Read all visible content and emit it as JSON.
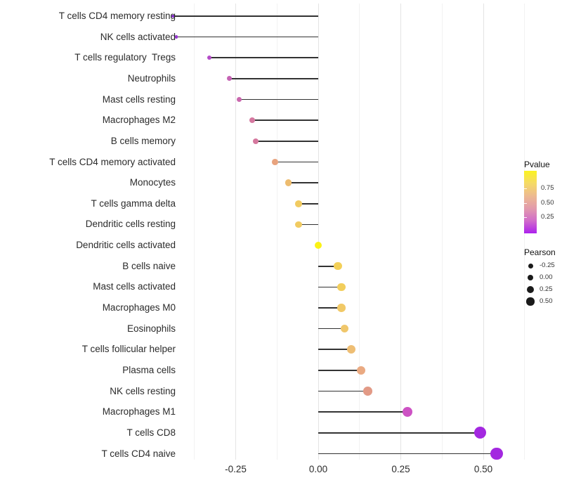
{
  "chart_data": {
    "type": "scatter",
    "subtype": "lollipop-horizontal",
    "title": "",
    "xlabel": "",
    "ylabel": "",
    "grid": true,
    "categories": [
      "T cells CD4 memory resting",
      "NK cells activated",
      "T cells regulatory  Tregs",
      "Neutrophils",
      "Mast cells resting",
      "Macrophages M2",
      "B cells memory",
      "T cells CD4 memory activated",
      "Monocytes",
      "T cells gamma delta",
      "Dendritic cells resting",
      "Dendritic cells activated",
      "B cells naive",
      "Mast cells activated",
      "Macrophages M0",
      "Eosinophils",
      "T cells follicular helper",
      "Plasma cells",
      "NK cells resting",
      "Macrophages M1",
      "T cells CD8",
      "T cells CD4 naive"
    ],
    "series": [
      {
        "name": "Pearson",
        "values": [
          -0.44,
          -0.43,
          -0.33,
          -0.27,
          -0.24,
          -0.2,
          -0.19,
          -0.13,
          -0.09,
          -0.06,
          -0.06,
          0.0,
          0.06,
          0.07,
          0.07,
          0.08,
          0.1,
          0.13,
          0.15,
          0.27,
          0.49,
          0.54
        ]
      }
    ],
    "point_colors": [
      "#8F33D6",
      "#9838D2",
      "#B44BC8",
      "#C563B4",
      "#CA68AE",
      "#D578A0",
      "#D5789E",
      "#E8A37E",
      "#EDBC6F",
      "#F1CB61",
      "#F1CB61",
      "#FBF215",
      "#F3D058",
      "#F2CE5C",
      "#F1C967",
      "#F0C76B",
      "#EEBE74",
      "#EAAA82",
      "#E29A86",
      "#CD52C4",
      "#A328E0",
      "#A328E0"
    ],
    "stick_color": "#333333",
    "x_tick_values": [
      -0.25,
      0.0,
      0.25,
      0.5
    ],
    "x_tick_labels": [
      "-0.25",
      "0.00",
      "0.25",
      "0.50"
    ],
    "x_minor_gridlines": [
      -0.375,
      -0.125,
      0.125,
      0.375,
      0.625
    ],
    "xlim": [
      -0.42,
      0.66
    ],
    "legend_position": "right"
  },
  "legend_pvalue": {
    "title": "Pvalue",
    "tick_labels": [
      "0.75",
      "0.50",
      "0.25"
    ],
    "gradient_top_to_bottom": [
      "#FBF321",
      "#F5DA66",
      "#EDBA90",
      "#E29BAC",
      "#D16CCA",
      "#AC21ED"
    ]
  },
  "legend_pearson": {
    "title": "Pearson",
    "item_labels": [
      "-0.25",
      "0.00",
      "0.25",
      "0.50"
    ],
    "dot_color": "#1a1a1a"
  }
}
